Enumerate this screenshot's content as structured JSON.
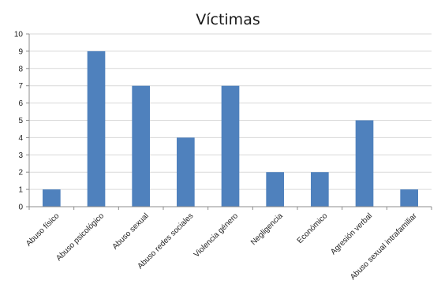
{
  "chart_data": {
    "type": "bar",
    "title": "Víctimas",
    "xlabel": "",
    "ylabel": "",
    "categories": [
      "Abuso físico",
      "Abuso psicológico",
      "Abuso sexual",
      "Abuso redes sociales",
      "Violencia género",
      "Negligencia",
      "Económico",
      "Agresión verbal",
      "Abuso sexual intrafamiliar"
    ],
    "values": [
      1,
      9,
      7,
      4,
      7,
      2,
      2,
      5,
      1
    ],
    "ylim": [
      0,
      10
    ],
    "yticks": [
      "0",
      "1",
      "2",
      "3",
      "4",
      "5",
      "6",
      "7",
      "8",
      "9",
      "10"
    ],
    "grid": true,
    "legend": "none",
    "bar_color": "#4f81bd",
    "grid_color": "#d9d9d9",
    "axis_color": "#8c8c8c"
  }
}
